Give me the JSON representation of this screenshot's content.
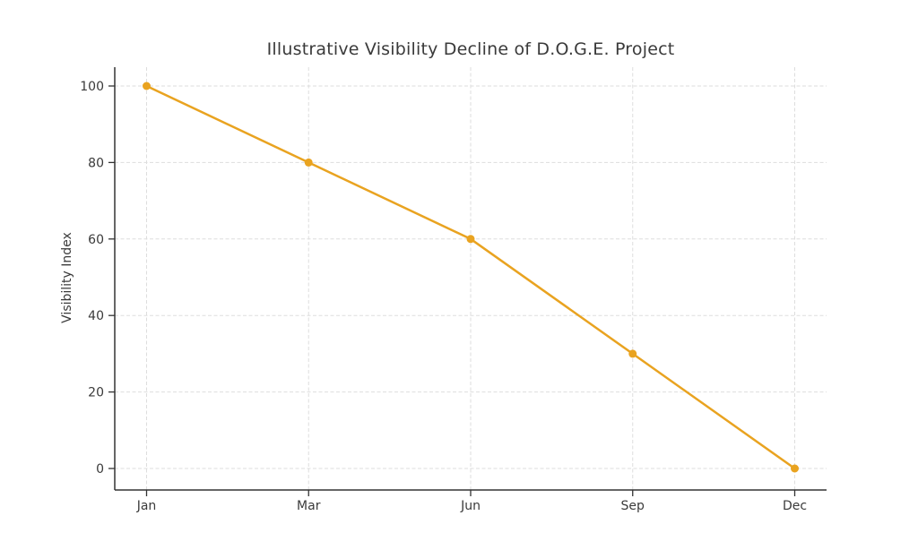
{
  "figure": {
    "background_color": "#FFFFFF"
  },
  "chart_data": {
    "type": "line",
    "title": "Illustrative Visibility Decline of D.O.G.E. Project",
    "categories": [
      "Jan",
      "Mar",
      "Jun",
      "Sep",
      "Dec"
    ],
    "values": [
      100,
      80,
      60,
      30,
      0
    ],
    "xlabel": "",
    "ylabel": "Visibility Index",
    "yticks": [
      0,
      20,
      40,
      60,
      80,
      100
    ],
    "ylim": [
      -5,
      105
    ],
    "grid": true,
    "grid_style": "dashed",
    "legend_position": "none",
    "line_color": "#E9A320",
    "marker_color": "#E9A320",
    "marker_shape": "circle",
    "axis_color": "#333333",
    "grid_color": "#DDDDDD",
    "text_color": "#3A3A3A"
  }
}
